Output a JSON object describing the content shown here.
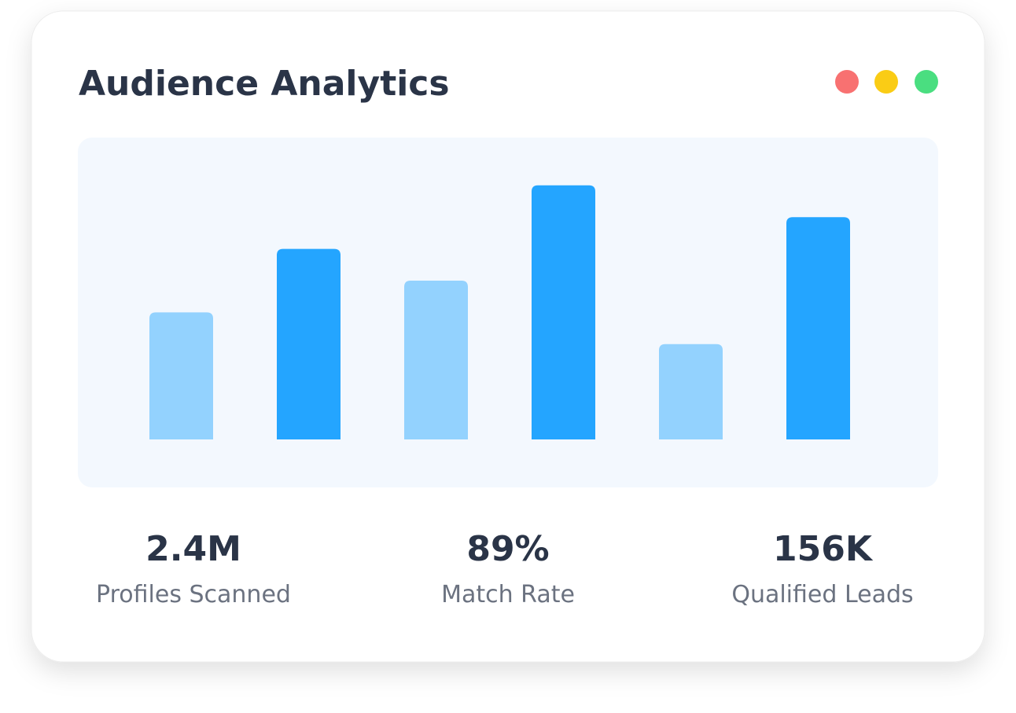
{
  "header": {
    "title": "Audience Analytics"
  },
  "chart_data": {
    "type": "bar",
    "values": [
      40,
      60,
      50,
      80,
      30,
      70
    ],
    "colors": [
      "#93d2fe",
      "#24a5ff",
      "#93d2fe",
      "#24a5ff",
      "#93d2fe",
      "#24a5ff"
    ],
    "ylim": [
      0,
      100
    ]
  },
  "stats": [
    {
      "value": "2.4M",
      "label": "Profiles Scanned"
    },
    {
      "value": "89%",
      "label": "Match Rate"
    },
    {
      "value": "156K",
      "label": "Qualified Leads"
    }
  ]
}
